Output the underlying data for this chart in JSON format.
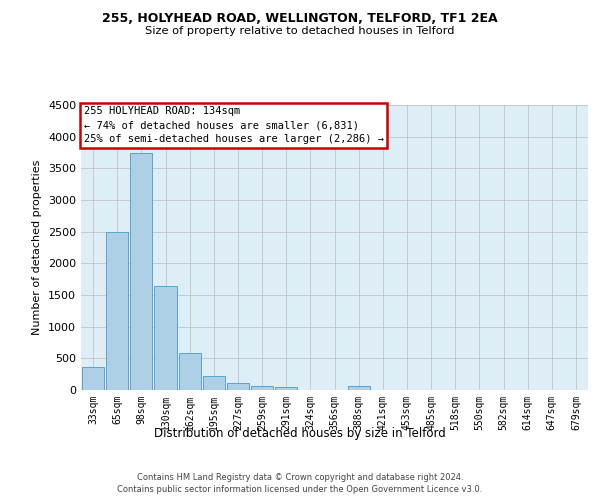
{
  "title1": "255, HOLYHEAD ROAD, WELLINGTON, TELFORD, TF1 2EA",
  "title2": "Size of property relative to detached houses in Telford",
  "xlabel": "Distribution of detached houses by size in Telford",
  "ylabel": "Number of detached properties",
  "categories": [
    "33sqm",
    "65sqm",
    "98sqm",
    "130sqm",
    "162sqm",
    "195sqm",
    "227sqm",
    "259sqm",
    "291sqm",
    "324sqm",
    "356sqm",
    "388sqm",
    "421sqm",
    "453sqm",
    "485sqm",
    "518sqm",
    "550sqm",
    "582sqm",
    "614sqm",
    "647sqm",
    "679sqm"
  ],
  "values": [
    370,
    2500,
    3750,
    1640,
    590,
    220,
    105,
    60,
    40,
    0,
    0,
    60,
    0,
    0,
    0,
    0,
    0,
    0,
    0,
    0,
    0
  ],
  "bar_color": "#aed0e6",
  "bar_edge_color": "#5ba3d0",
  "annotation_text": "255 HOLYHEAD ROAD: 134sqm\n← 74% of detached houses are smaller (6,831)\n25% of semi-detached houses are larger (2,286) →",
  "annotation_box_color": "#ffffff",
  "annotation_box_edge_color": "#cc0000",
  "ylim": [
    0,
    4500
  ],
  "yticks": [
    0,
    500,
    1000,
    1500,
    2000,
    2500,
    3000,
    3500,
    4000,
    4500
  ],
  "footer1": "Contains HM Land Registry data © Crown copyright and database right 2024.",
  "footer2": "Contains public sector information licensed under the Open Government Licence v3.0.",
  "background_color": "#ffffff",
  "axes_background": "#ddeef7",
  "grid_color": "#bbbbbb",
  "fig_width": 6.0,
  "fig_height": 5.0
}
